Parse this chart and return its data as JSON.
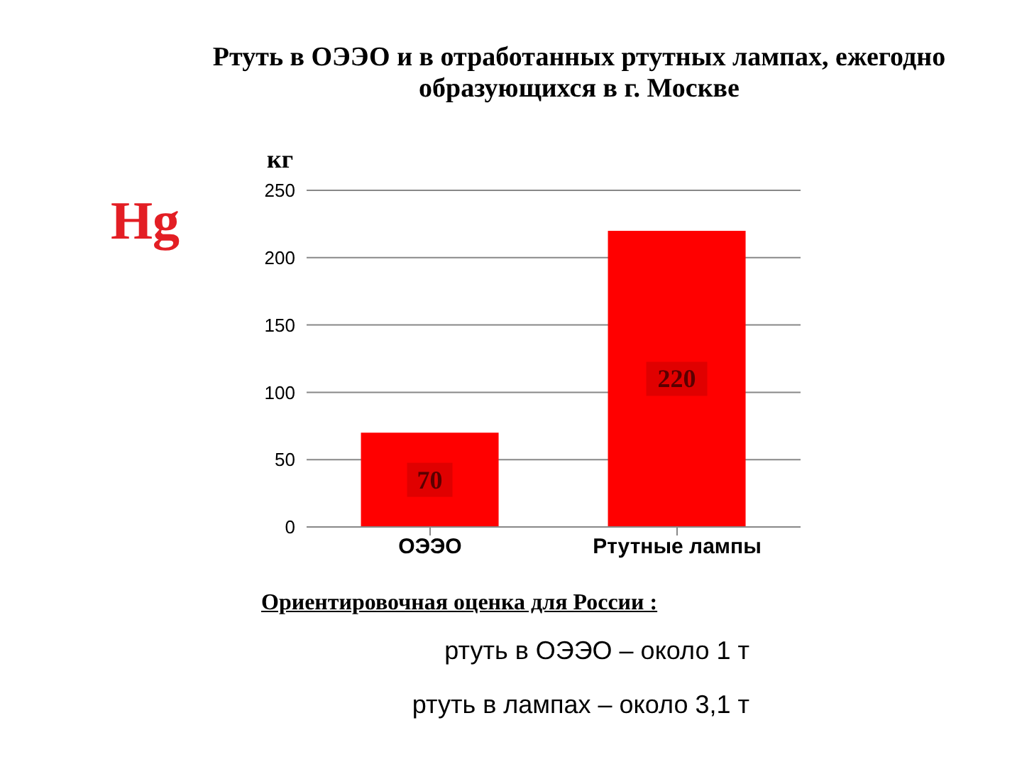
{
  "chart_data": {
    "type": "bar",
    "title": "Ртуть в ОЭЭО и в отработанных ртутных лампах, ежегодно образующихся в г. Москве",
    "ylabel": "кг",
    "categories": [
      "ОЭЭО",
      "Ртутные лампы"
    ],
    "values": [
      70,
      220
    ],
    "color": "#ff0000",
    "ylim": [
      0,
      250
    ],
    "yticks": [
      0,
      50,
      100,
      150,
      200,
      250
    ],
    "grid": "y",
    "data_labels": true,
    "annotations": [
      "Hg",
      "Ориентировочная оценка  для России :",
      "ртуть в ОЭЭО – около 1 т",
      "ртуть в лампах – около 3,1 т"
    ]
  }
}
